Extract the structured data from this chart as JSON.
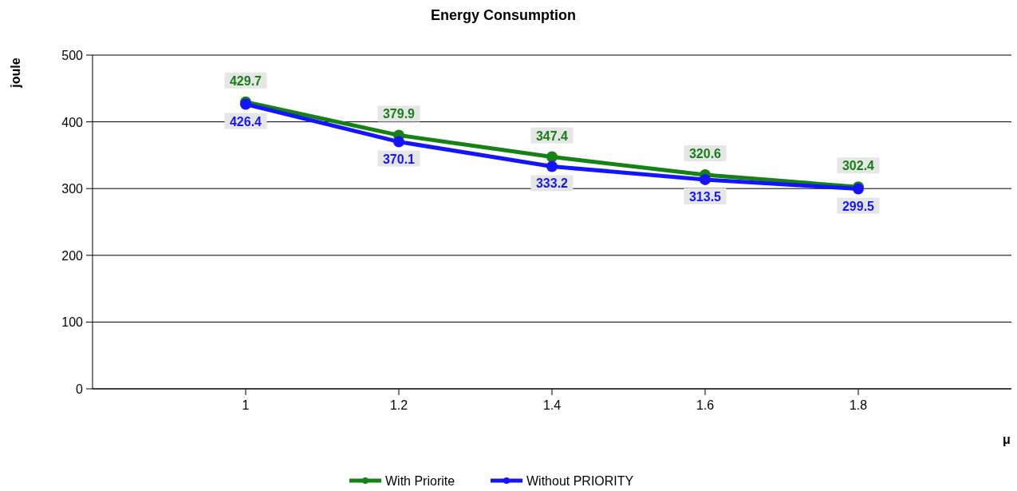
{
  "chart_data": {
    "type": "line",
    "title": "Energy Consumption",
    "xlabel": "μ",
    "ylabel": "joule",
    "x": [
      1,
      1.2,
      1.4,
      1.6,
      1.8
    ],
    "series": [
      {
        "name": "With Priorite",
        "color": "#148214",
        "values": [
          429.7,
          379.9,
          347.4,
          320.6,
          302.4
        ]
      },
      {
        "name": "Without PRIORITY",
        "color": "#1414ff",
        "values": [
          426.4,
          370.1,
          333.2,
          313.5,
          299.5
        ]
      }
    ],
    "xlim": [
      0.8,
      2.0
    ],
    "xticks": [
      1,
      1.2,
      1.4,
      1.6,
      1.8
    ],
    "ylim": [
      0,
      500
    ],
    "yticks": [
      0,
      100,
      200,
      300,
      400,
      500
    ],
    "grid": "y",
    "legend": "bottom",
    "marker": "circle",
    "line_style": "solid",
    "data_labels": true
  }
}
